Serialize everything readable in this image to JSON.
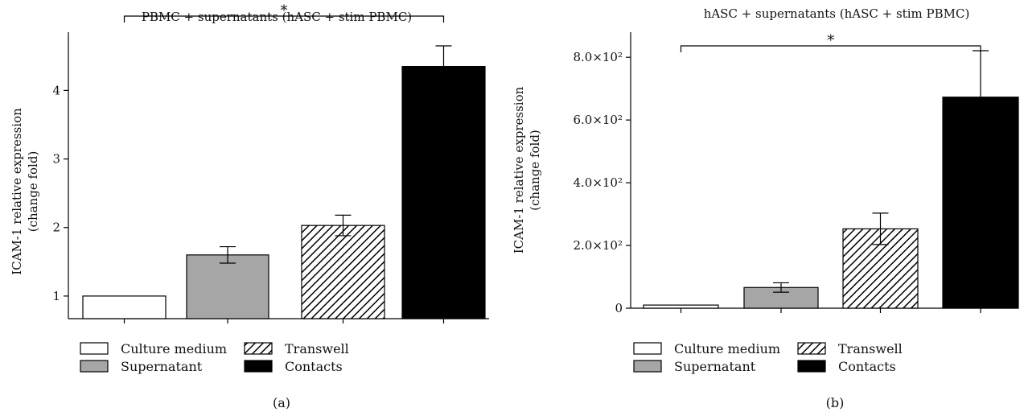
{
  "chart_data": [
    {
      "type": "bar",
      "panel_label": "(a)",
      "title": "PBMC + supernatants (hASC + stim PBMC)",
      "ylabel_line1": "ICAM-1 relative expression",
      "ylabel_line2": "(change fold)",
      "xlabel": "",
      "categories": [
        "Culture medium",
        "Supernatant",
        "Transwell",
        "Contacts"
      ],
      "values": [
        1.0,
        1.6,
        2.03,
        4.35
      ],
      "errors": [
        0.0,
        0.12,
        0.15,
        0.3
      ],
      "fills": [
        "white",
        "gray",
        "hatch",
        "black"
      ],
      "ylim": [
        0.67,
        4.85
      ],
      "yticks": [
        1,
        2,
        3,
        4
      ],
      "ytick_labels": [
        "1",
        "2",
        "3",
        "4"
      ],
      "significance": {
        "from": 0,
        "to": 3,
        "label": "*"
      },
      "legend": [
        "Culture medium",
        "Supernatant",
        "Transwell",
        "Contacts"
      ],
      "legend_placement": "bottom",
      "grid": false
    },
    {
      "type": "bar",
      "panel_label": "(b)",
      "title": "hASC + supernatants (hASC + stim PBMC)",
      "ylabel_line1": "ICAM-1 relative expression",
      "ylabel_line2": "(change fold)",
      "xlabel": "",
      "categories": [
        "Culture medium",
        "Supernatant",
        "Transwell",
        "Contacts"
      ],
      "values": [
        10,
        66,
        253,
        673
      ],
      "errors": [
        0,
        15,
        50,
        148
      ],
      "fills": [
        "white",
        "gray",
        "hatch",
        "black"
      ],
      "ylim": [
        0,
        880
      ],
      "yticks": [
        0,
        200,
        400,
        600,
        800
      ],
      "ytick_labels": [
        "0",
        "2.0×10²",
        "4.0×10²",
        "6.0×10²",
        "8.0×10²"
      ],
      "significance": {
        "from": 0,
        "to": 3,
        "label": "*"
      },
      "legend": [
        "Culture medium",
        "Supernatant",
        "Transwell",
        "Contacts"
      ],
      "legend_placement": "bottom",
      "grid": false
    }
  ],
  "colors": {
    "white": "#ffffff",
    "gray": "#a6a6a6",
    "black": "#000000",
    "axis": "#000000"
  }
}
